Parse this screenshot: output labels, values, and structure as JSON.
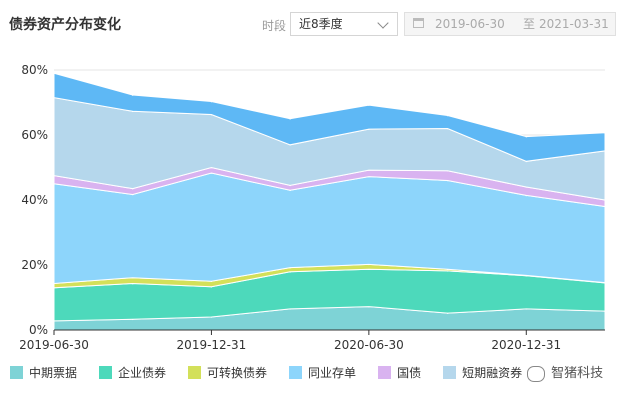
{
  "header": {
    "title": "债券资产分布变化",
    "period_label": "时段",
    "period_value": "近8季度",
    "date_start": "2019-06-30",
    "date_sep": "至",
    "date_end": "2021-03-31"
  },
  "watermark": "智猪科技",
  "chart_data": {
    "type": "area",
    "stacked": true,
    "x": [
      "2019-06-30",
      "2019-09-30",
      "2019-12-31",
      "2020-03-31",
      "2020-06-30",
      "2020-09-30",
      "2020-12-31",
      "2021-03-31"
    ],
    "x_tick_labels": [
      "2019-06-30",
      "2019-12-31",
      "2020-06-30",
      "2020-12-31"
    ],
    "y_tick_labels": [
      "0%",
      "20%",
      "40%",
      "60%",
      "80%"
    ],
    "ylim": [
      0,
      80
    ],
    "y_unit": "%",
    "grid": true,
    "legend_position": "bottom",
    "series": [
      {
        "name": "中期票据",
        "color": "#7ed3d6",
        "values": [
          2.8,
          3.3,
          4.0,
          6.5,
          7.2,
          5.2,
          6.5,
          5.8
        ]
      },
      {
        "name": "企业债券",
        "color": "#4dd9bb",
        "values": [
          10.2,
          11.0,
          9.3,
          11.4,
          11.5,
          13.0,
          10.2,
          8.7
        ]
      },
      {
        "name": "可转换债券",
        "color": "#d3e05a",
        "values": [
          1.3,
          1.8,
          1.7,
          1.3,
          1.5,
          0.5,
          0.1,
          0.1
        ]
      },
      {
        "name": "同业存单",
        "color": "#8dd5fb",
        "values": [
          30.7,
          25.6,
          33.3,
          23.8,
          27.0,
          27.3,
          24.6,
          23.4
        ]
      },
      {
        "name": "国债",
        "color": "#d9b3f0",
        "values": [
          2.5,
          1.8,
          1.7,
          1.5,
          2.0,
          3.0,
          2.6,
          2.0
        ]
      },
      {
        "name": "短期融资券",
        "color": "#b5d7ec",
        "values": [
          24.0,
          23.8,
          16.3,
          12.5,
          12.6,
          13.0,
          7.9,
          15.1
        ]
      },
      {
        "name": "",
        "color": "#5eb8f5",
        "values": [
          7.5,
          5.0,
          4.0,
          8.0,
          7.4,
          4.0,
          7.6,
          5.6
        ]
      }
    ]
  }
}
